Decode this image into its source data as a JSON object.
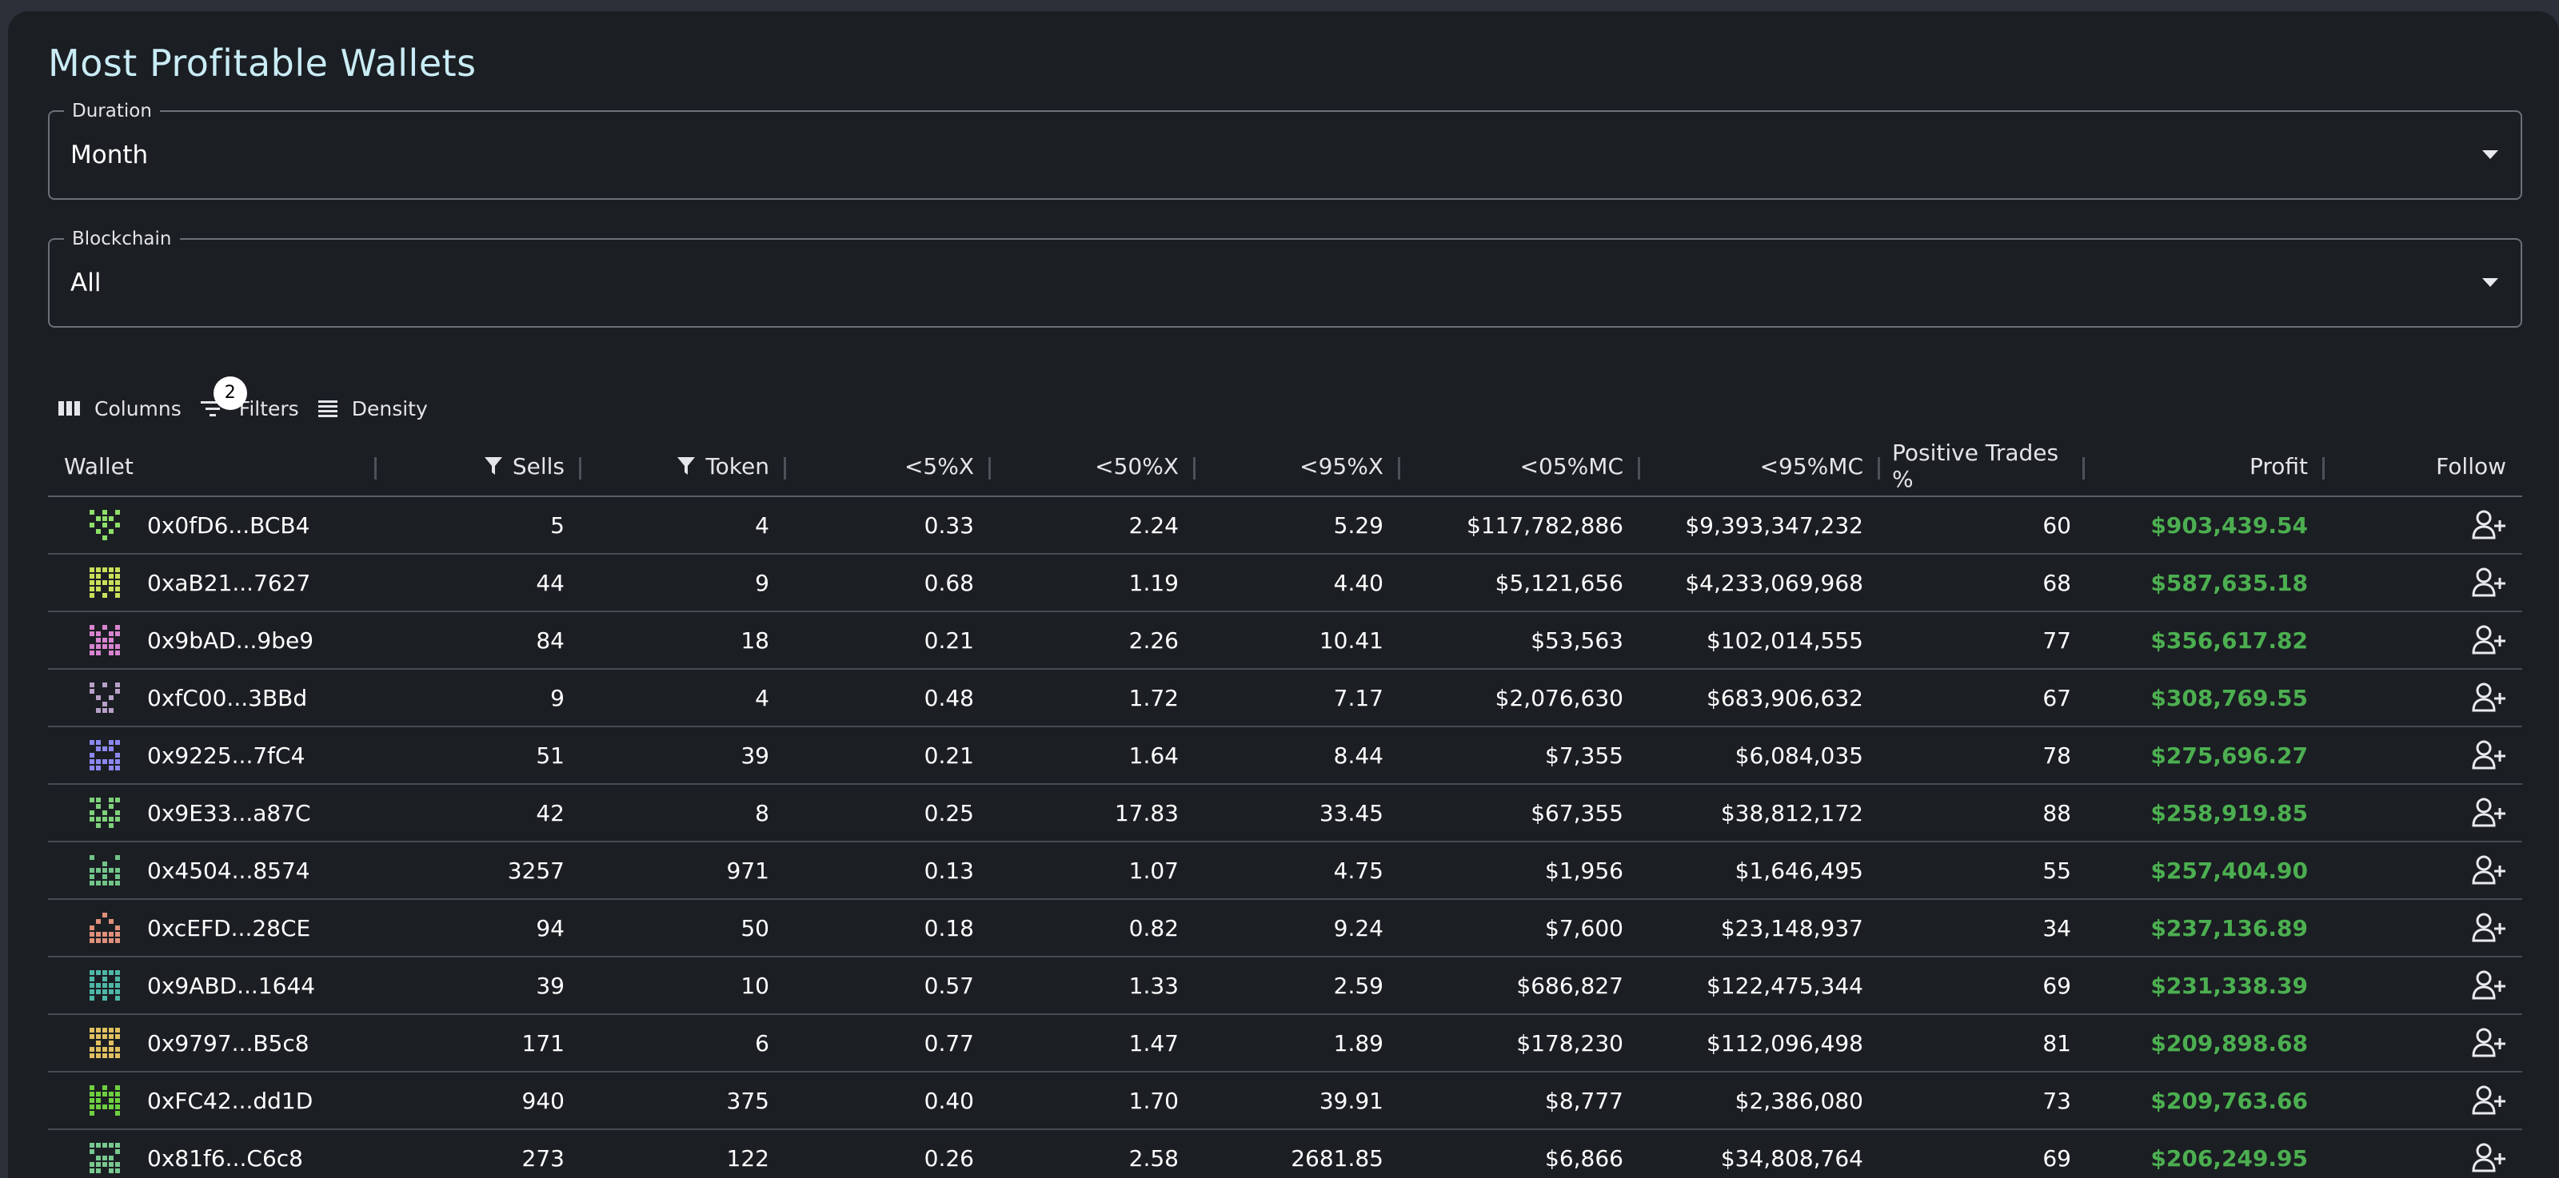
{
  "title": "Most Profitable Wallets",
  "duration": {
    "label": "Duration",
    "value": "Month"
  },
  "blockchain": {
    "label": "Blockchain",
    "value": "All"
  },
  "toolbar": {
    "columns": "Columns",
    "filters": "Filters",
    "filter_count": "2",
    "density": "Density"
  },
  "columns": {
    "wallet": "Wallet",
    "sells": "Sells",
    "token": "Token",
    "x5": "<5%X",
    "x50": "<50%X",
    "x95": "<95%X",
    "mc05": "<05%MC",
    "mc95": "<95%MC",
    "positive": "Positive Trades %",
    "profit": "Profit",
    "follow": "Follow"
  },
  "colors": {
    "profit": "#4caf50",
    "title": "#c9ecf5",
    "background": "#1b1e23"
  },
  "rows": [
    {
      "wallet": "0x0fD6...BCB4",
      "sells": "5",
      "token": "4",
      "x5": "0.33",
      "x50": "2.24",
      "x95": "5.29",
      "mc05": "$117,782,886",
      "mc95": "$9,393,347,232",
      "positive": "60",
      "profit": "$903,439.54",
      "avatar": "#8ee06a"
    },
    {
      "wallet": "0xaB21...7627",
      "sells": "44",
      "token": "9",
      "x5": "0.68",
      "x50": "1.19",
      "x95": "4.40",
      "mc05": "$5,121,656",
      "mc95": "$4,233,069,968",
      "positive": "68",
      "profit": "$587,635.18",
      "avatar": "#c8e05a"
    },
    {
      "wallet": "0x9bAD...9be9",
      "sells": "84",
      "token": "18",
      "x5": "0.21",
      "x50": "2.26",
      "x95": "10.41",
      "mc05": "$53,563",
      "mc95": "$102,014,555",
      "positive": "77",
      "profit": "$356,617.82",
      "avatar": "#d884d0"
    },
    {
      "wallet": "0xfC00...3BBd",
      "sells": "9",
      "token": "4",
      "x5": "0.48",
      "x50": "1.72",
      "x95": "7.17",
      "mc05": "$2,076,630",
      "mc95": "$683,906,632",
      "positive": "67",
      "profit": "$308,769.55",
      "avatar": "#b8a0c8"
    },
    {
      "wallet": "0x9225...7fC4",
      "sells": "51",
      "token": "39",
      "x5": "0.21",
      "x50": "1.64",
      "x95": "8.44",
      "mc05": "$7,355",
      "mc95": "$6,084,035",
      "positive": "78",
      "profit": "$275,696.27",
      "avatar": "#8c88f0"
    },
    {
      "wallet": "0x9E33...a87C",
      "sells": "42",
      "token": "8",
      "x5": "0.25",
      "x50": "17.83",
      "x95": "33.45",
      "mc05": "$67,355",
      "mc95": "$38,812,172",
      "positive": "88",
      "profit": "$258,919.85",
      "avatar": "#7ed07a"
    },
    {
      "wallet": "0x4504...8574",
      "sells": "3257",
      "token": "971",
      "x5": "0.13",
      "x50": "1.07",
      "x95": "4.75",
      "mc05": "$1,956",
      "mc95": "$1,646,495",
      "positive": "55",
      "profit": "$257,404.90",
      "avatar": "#72c48a"
    },
    {
      "wallet": "0xcEFD...28CE",
      "sells": "94",
      "token": "50",
      "x5": "0.18",
      "x50": "0.82",
      "x95": "9.24",
      "mc05": "$7,600",
      "mc95": "$23,148,937",
      "positive": "34",
      "profit": "$237,136.89",
      "avatar": "#e0907a"
    },
    {
      "wallet": "0x9ABD...1644",
      "sells": "39",
      "token": "10",
      "x5": "0.57",
      "x50": "1.33",
      "x95": "2.59",
      "mc05": "$686,827",
      "mc95": "$122,475,344",
      "positive": "69",
      "profit": "$231,338.39",
      "avatar": "#4fb8a8"
    },
    {
      "wallet": "0x9797...B5c8",
      "sells": "171",
      "token": "6",
      "x5": "0.77",
      "x50": "1.47",
      "x95": "1.89",
      "mc05": "$178,230",
      "mc95": "$112,096,498",
      "positive": "81",
      "profit": "$209,898.68",
      "avatar": "#e0c060"
    },
    {
      "wallet": "0xFC42...dd1D",
      "sells": "940",
      "token": "375",
      "x5": "0.40",
      "x50": "1.70",
      "x95": "39.91",
      "mc05": "$8,777",
      "mc95": "$2,386,080",
      "positive": "73",
      "profit": "$209,763.66",
      "avatar": "#6ed040"
    },
    {
      "wallet": "0x81f6...C6c8",
      "sells": "273",
      "token": "122",
      "x5": "0.26",
      "x50": "2.58",
      "x95": "2681.85",
      "mc05": "$6,866",
      "mc95": "$34,808,764",
      "positive": "69",
      "profit": "$206,249.95",
      "avatar": "#78c890"
    }
  ]
}
